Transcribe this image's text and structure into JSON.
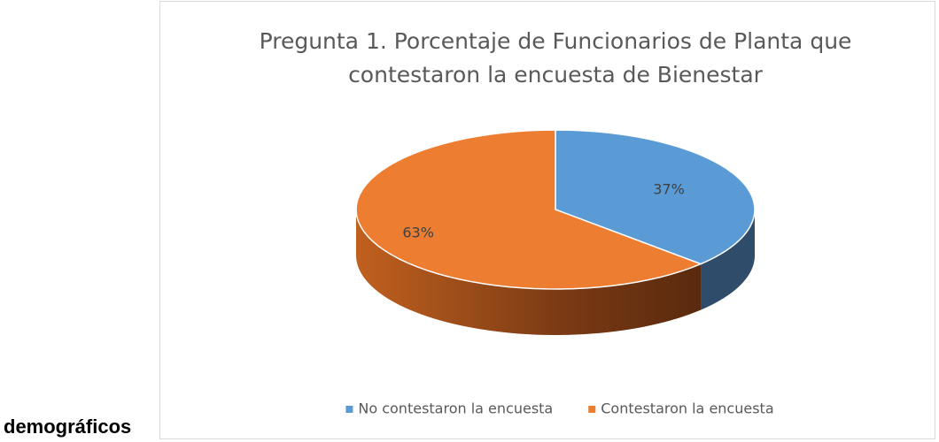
{
  "page_text": "demográficos",
  "chart_data": {
    "type": "pie",
    "title": "Pregunta 1. Porcentaje de Funcionarios de Planta que contestaron la encuesta de Bienestar",
    "categories": [
      "No contestaron la encuesta",
      "Contestaron la encuesta"
    ],
    "values": [
      37,
      63
    ],
    "value_labels": [
      "37%",
      "63%"
    ],
    "colors": [
      "#5b9bd5",
      "#ed7d31"
    ],
    "legend": "bottom"
  }
}
